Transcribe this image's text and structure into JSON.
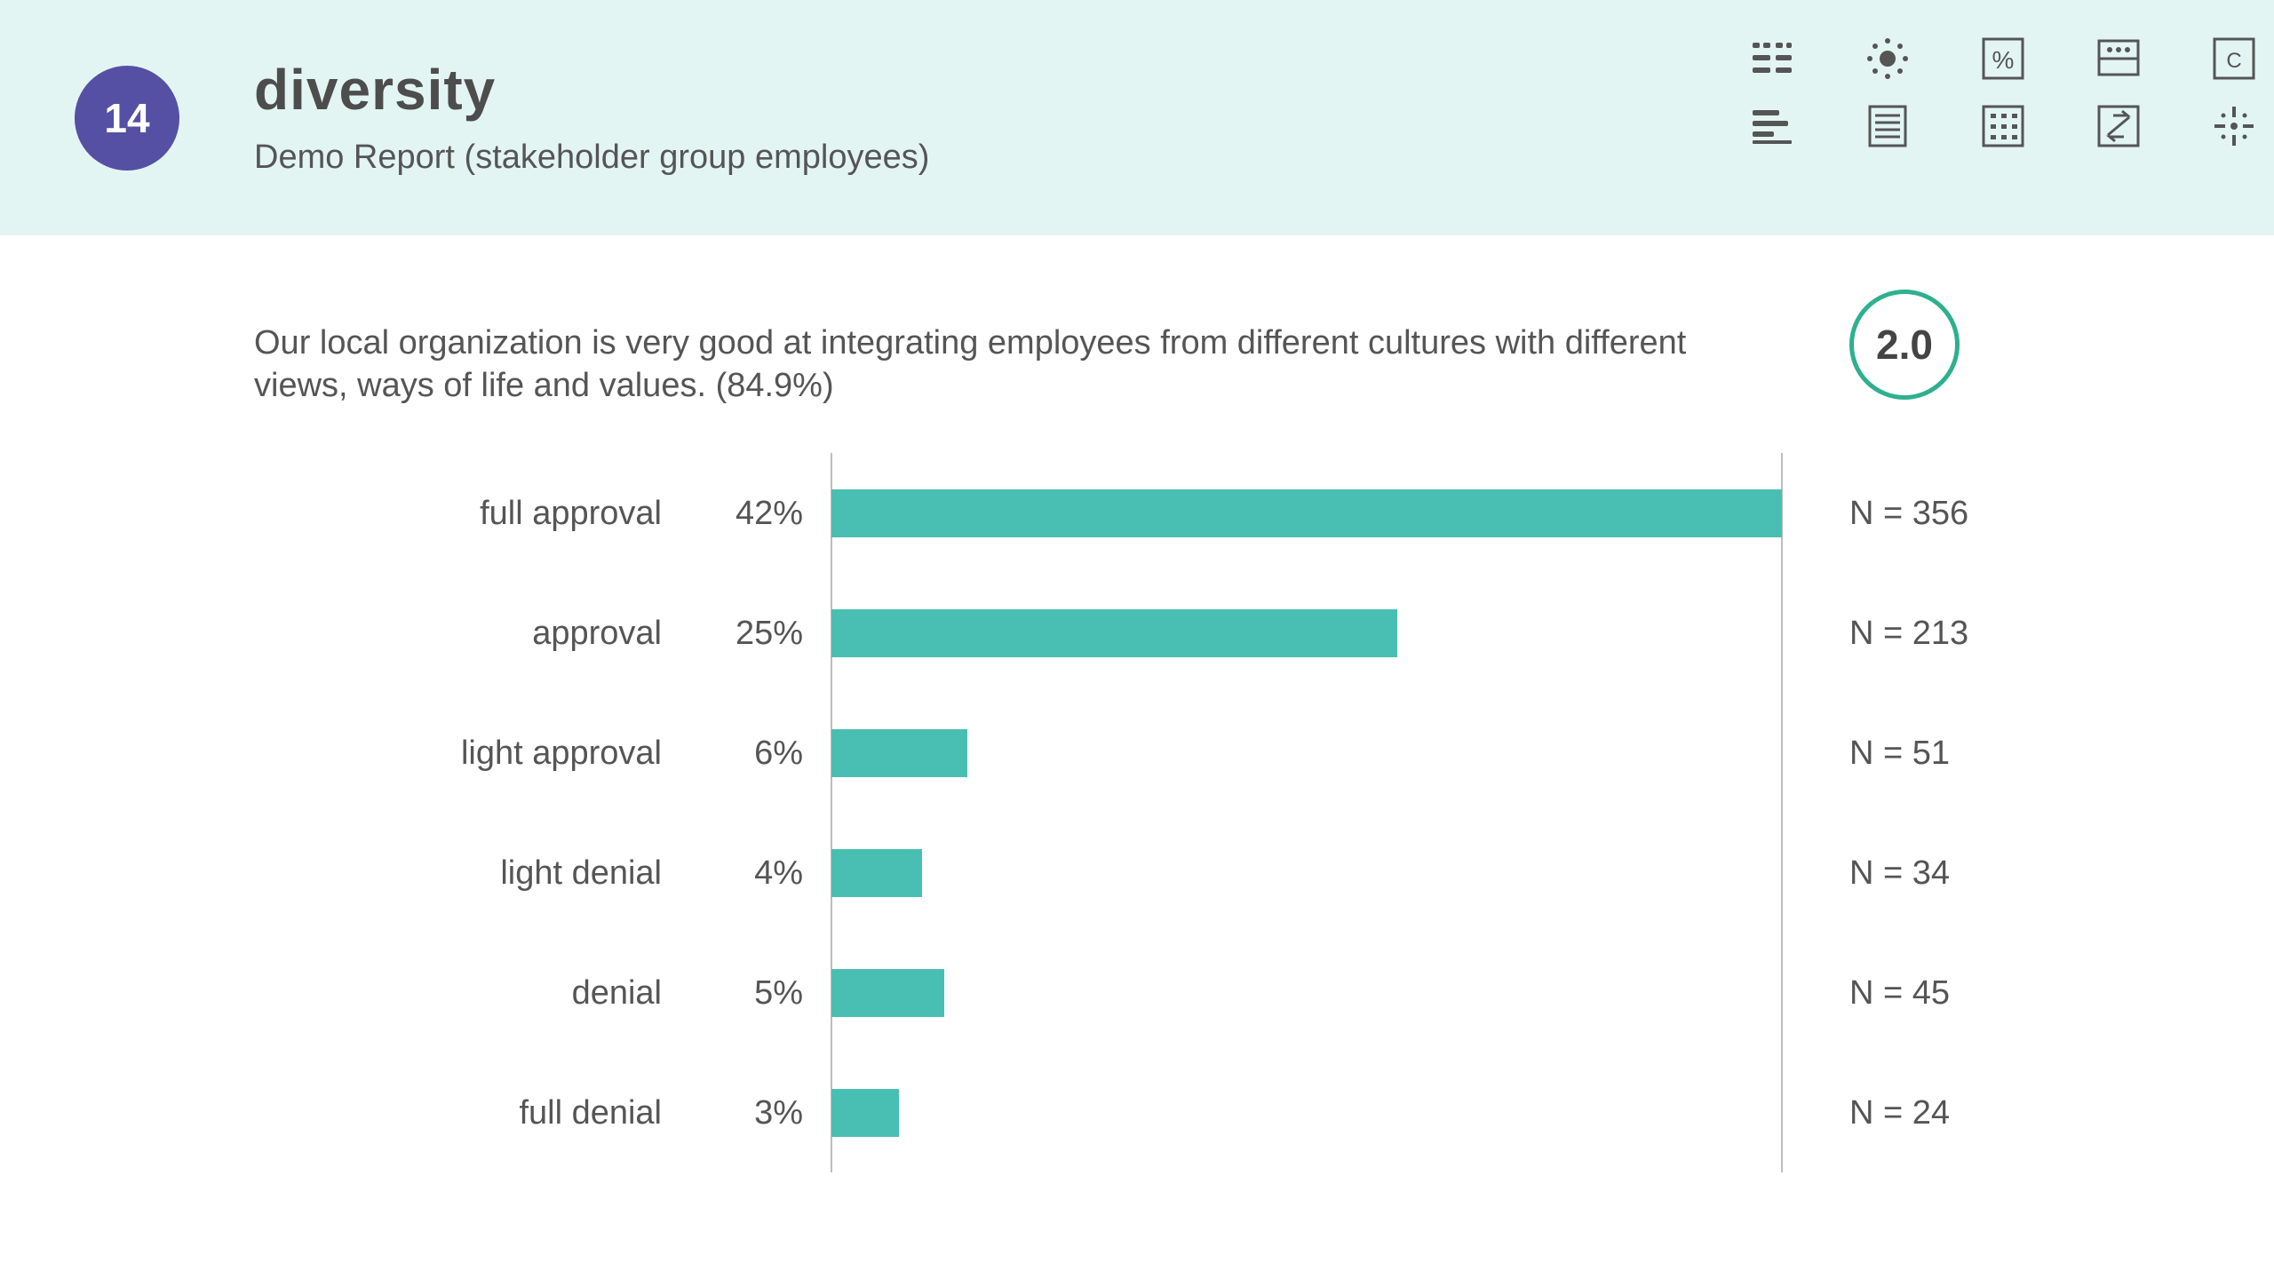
{
  "header": {
    "number": "14",
    "title": "diversity",
    "subtitle": "Demo Report (stakeholder group employees)"
  },
  "toolbar": {
    "icons": [
      "list-grid-icon",
      "sun-icon",
      "percent-icon",
      "calendar-icon",
      "c-box-icon",
      "align-left-icon",
      "document-icon",
      "table-icon",
      "swap-icon",
      "sparkle-icon"
    ],
    "percent_glyph": "%",
    "c_glyph": "C"
  },
  "question": {
    "text": "Our local organization is very good at integrating employees from different cultures with different views, ways of life and values. (84.9%)",
    "score": "2.0"
  },
  "colors": {
    "header_bg": "#e3f5f3",
    "badge": "#5550a4",
    "bar": "#49bfb3",
    "score_ring": "#2eb08f"
  },
  "chart_data": {
    "type": "bar",
    "orientation": "horizontal",
    "categories": [
      "full approval",
      "approval",
      "light approval",
      "light denial",
      "denial",
      "full denial"
    ],
    "values": [
      42,
      25,
      6,
      4,
      5,
      3
    ],
    "value_labels": [
      "42%",
      "25%",
      "6%",
      "4%",
      "5%",
      "3%"
    ],
    "n_labels": [
      "N = 356",
      "N = 213",
      "N = 51",
      "N = 34",
      "N = 45",
      "N = 24"
    ],
    "xlim": [
      0,
      42
    ],
    "grid": false
  }
}
